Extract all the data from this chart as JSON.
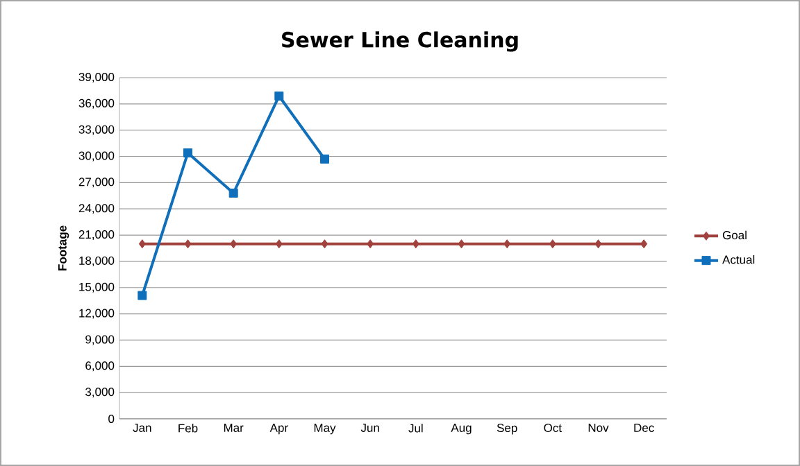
{
  "chart_data": {
    "type": "line",
    "title": "Sewer Line Cleaning",
    "ylabel": "Footage",
    "categories": [
      "Jan",
      "Feb",
      "Mar",
      "Apr",
      "May",
      "Jun",
      "Jul",
      "Aug",
      "Sep",
      "Oct",
      "Nov",
      "Dec"
    ],
    "series": [
      {
        "name": "Goal",
        "color": "#a0413e",
        "marker": "diamond",
        "values": [
          20000,
          20000,
          20000,
          20000,
          20000,
          20000,
          20000,
          20000,
          20000,
          20000,
          20000,
          20000
        ]
      },
      {
        "name": "Actual",
        "color": "#0f6fba",
        "marker": "square",
        "values": [
          14100,
          30400,
          25800,
          36900,
          29700,
          null,
          null,
          null,
          null,
          null,
          null,
          null
        ]
      }
    ],
    "ylim": [
      0,
      39000
    ],
    "yticks": [
      {
        "value": 0,
        "label": "0"
      },
      {
        "value": 3000,
        "label": "3,000"
      },
      {
        "value": 6000,
        "label": "6,000"
      },
      {
        "value": 9000,
        "label": "9,000"
      },
      {
        "value": 12000,
        "label": "12,000"
      },
      {
        "value": 15000,
        "label": "15,000"
      },
      {
        "value": 18000,
        "label": "18,000"
      },
      {
        "value": 21000,
        "label": "21,000"
      },
      {
        "value": 24000,
        "label": "24,000"
      },
      {
        "value": 27000,
        "label": "27,000"
      },
      {
        "value": 30000,
        "label": "30,000"
      },
      {
        "value": 33000,
        "label": "33,000"
      },
      {
        "value": 36000,
        "label": "36,000"
      },
      {
        "value": 39000,
        "label": "39,000"
      }
    ],
    "grid": "y",
    "legend": "right",
    "line_style": "solid"
  }
}
